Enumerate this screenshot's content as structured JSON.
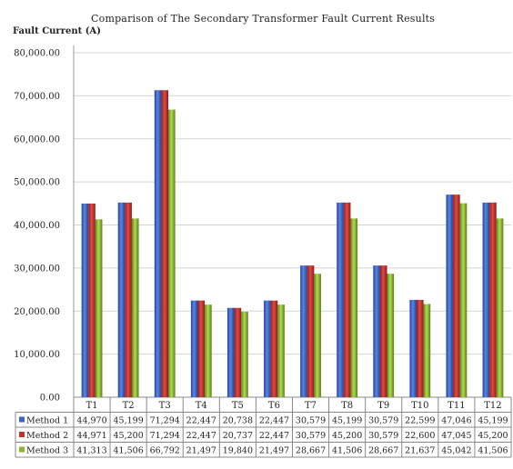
{
  "chart_data": {
    "type": "bar",
    "title": "Comparison of The Secondary Transformer Fault Current Results",
    "ylabel": "Fault Current (A)",
    "xlabel": "",
    "ylim": [
      0,
      80000
    ],
    "yticks": [
      0,
      10000,
      20000,
      30000,
      40000,
      50000,
      60000,
      70000,
      80000
    ],
    "ytick_labels": [
      "0.00",
      "10,000.00",
      "20,000.00",
      "30,000.00",
      "40,000.00",
      "50,000.00",
      "60,000.00",
      "70,000.00",
      "80,000.00"
    ],
    "grid": true,
    "legend": "data table below chart",
    "categories": [
      "T1",
      "T2",
      "T3",
      "T4",
      "T5",
      "T6",
      "T7",
      "T8",
      "T9",
      "T10",
      "T11",
      "T12"
    ],
    "series": [
      {
        "name": "Method 1",
        "color": "#3a64c8",
        "values": [
          44970,
          45199,
          71294,
          22447,
          20738,
          22447,
          30579,
          45199,
          30579,
          22599,
          47046,
          45199
        ],
        "labels": [
          "44,970",
          "45,199",
          "71,294",
          "22,447",
          "20,738",
          "22,447",
          "30,579",
          "45,199",
          "30,579",
          "22,599",
          "47,046",
          "45,199"
        ]
      },
      {
        "name": "Method 2",
        "color": "#c8302c",
        "values": [
          44971,
          45200,
          71294,
          22447,
          20737,
          22447,
          30579,
          45200,
          30579,
          22600,
          47045,
          45200
        ],
        "labels": [
          "44,971",
          "45,200",
          "71,294",
          "22,447",
          "20,737",
          "22,447",
          "30,579",
          "45,200",
          "30,579",
          "22,600",
          "47,045",
          "45,200"
        ]
      },
      {
        "name": "Method 3",
        "color": "#8ab530",
        "values": [
          41313,
          41506,
          66792,
          21497,
          19840,
          21497,
          28667,
          41506,
          28667,
          21637,
          45042,
          41506
        ],
        "labels": [
          "41,313",
          "41,506",
          "66,792",
          "21,497",
          "19,840",
          "21,497",
          "28,667",
          "41,506",
          "28,667",
          "21,637",
          "45,042",
          "41,506"
        ]
      }
    ]
  }
}
